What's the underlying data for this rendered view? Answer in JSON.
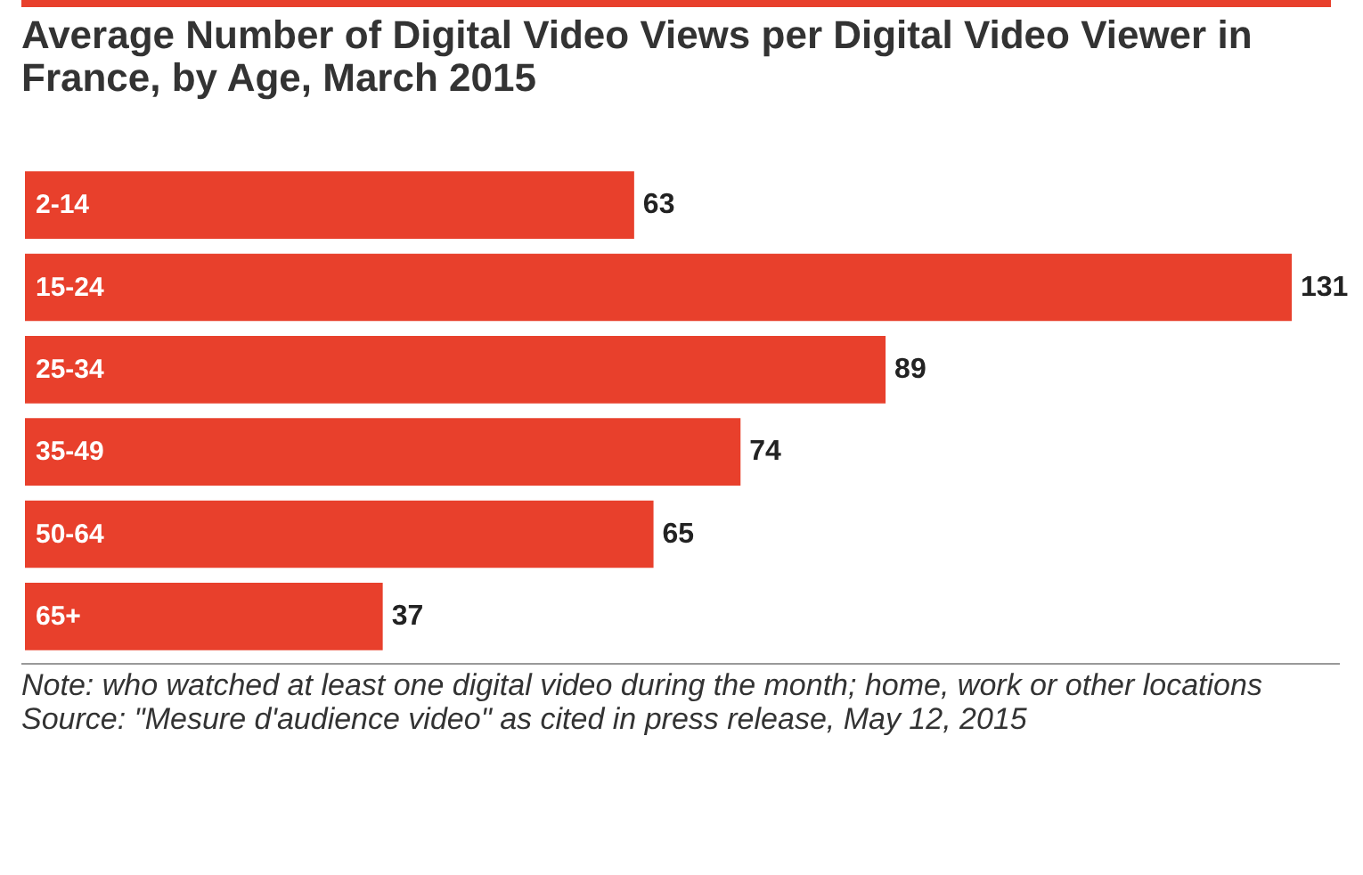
{
  "chart_data": {
    "type": "bar",
    "orientation": "horizontal",
    "title": "Average Number of Digital Video Views per Digital Video Viewer in France, by Age, March 2015",
    "categories": [
      "2-14",
      "15-24",
      "25-34",
      "35-49",
      "50-64",
      "65+"
    ],
    "values": [
      63,
      131,
      89,
      74,
      65,
      37
    ],
    "color": "#e8402c",
    "data_labels": true,
    "annotations": [
      "Note: who watched at least one digital video during the month; home, work or other locations",
      "Source: \"Mesure d'audience video\" as cited in press release, May 12, 2015"
    ]
  }
}
